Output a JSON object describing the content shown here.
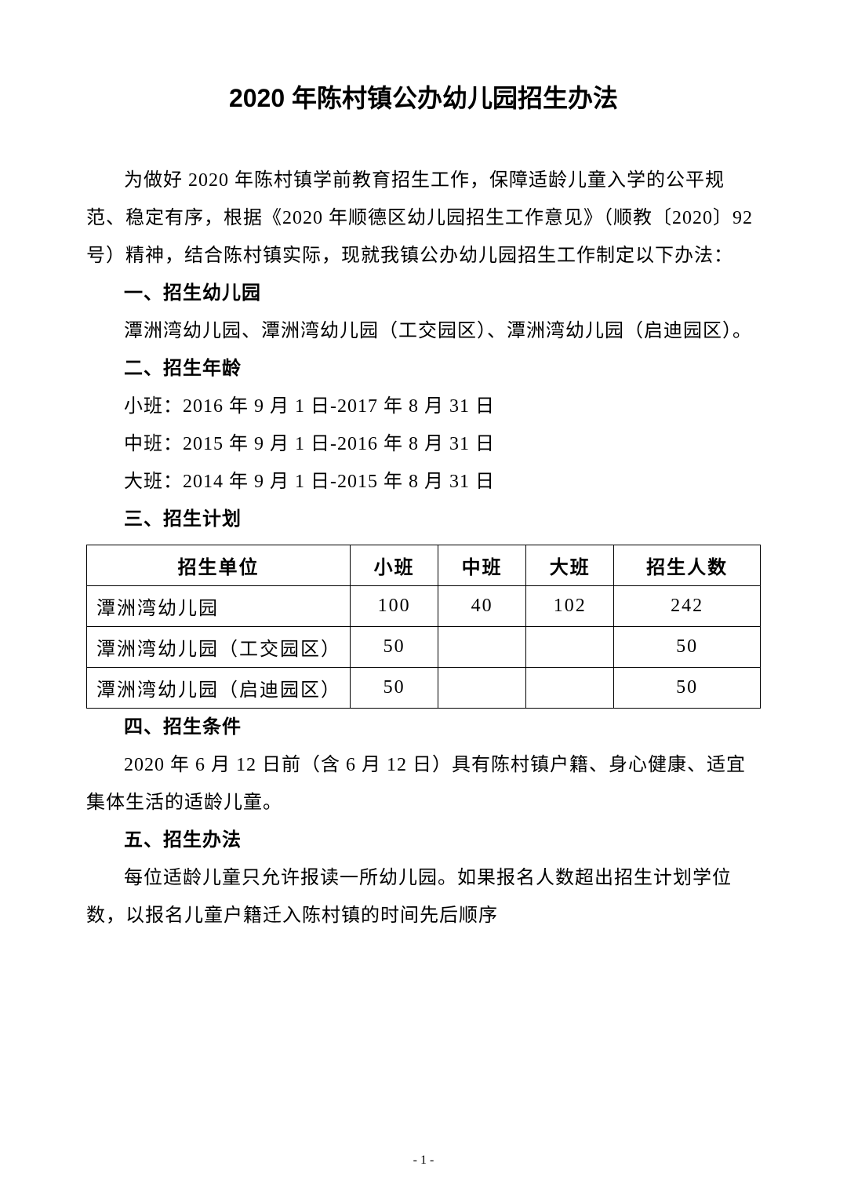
{
  "title": "2020 年陈村镇公办幼儿园招生办法",
  "intro": "为做好 2020 年陈村镇学前教育招生工作，保障适龄儿童入学的公平规范、稳定有序，根据《2020 年顺德区幼儿园招生工作意见》（顺教〔2020〕92 号）精神，结合陈村镇实际，现就我镇公办幼儿园招生工作制定以下办法：",
  "section1": {
    "heading": "一、招生幼儿园",
    "body": "潭洲湾幼儿园、潭洲湾幼儿园（工交园区）、潭洲湾幼儿园（启迪园区）。"
  },
  "section2": {
    "heading": "二、招生年龄",
    "line1": "小班：2016 年 9 月 1 日-2017 年 8 月 31 日",
    "line2": "中班：2015 年 9 月 1 日-2016 年 8 月 31 日",
    "line3": "大班：2014 年 9 月 1 日-2015 年 8 月 31 日"
  },
  "section3": {
    "heading": "三、招生计划",
    "table": {
      "columns": [
        "招生单位",
        "小班",
        "中班",
        "大班",
        "招生人数"
      ],
      "rows": [
        [
          "潭洲湾幼儿园",
          "100",
          "40",
          "102",
          "242"
        ],
        [
          "潭洲湾幼儿园（工交园区）",
          "50",
          "",
          "",
          "50"
        ],
        [
          "潭洲湾幼儿园（启迪园区）",
          "50",
          "",
          "",
          "50"
        ]
      ]
    }
  },
  "section4": {
    "heading": "四、招生条件",
    "body": "2020 年 6 月 12 日前（含 6 月 12 日）具有陈村镇户籍、身心健康、适宜集体生活的适龄儿童。"
  },
  "section5": {
    "heading": "五、招生办法",
    "body": "每位适龄儿童只允许报读一所幼儿园。如果报名人数超出招生计划学位数，以报名儿童户籍迁入陈村镇的时间先后顺序"
  },
  "pageNumber": "- 1 -"
}
